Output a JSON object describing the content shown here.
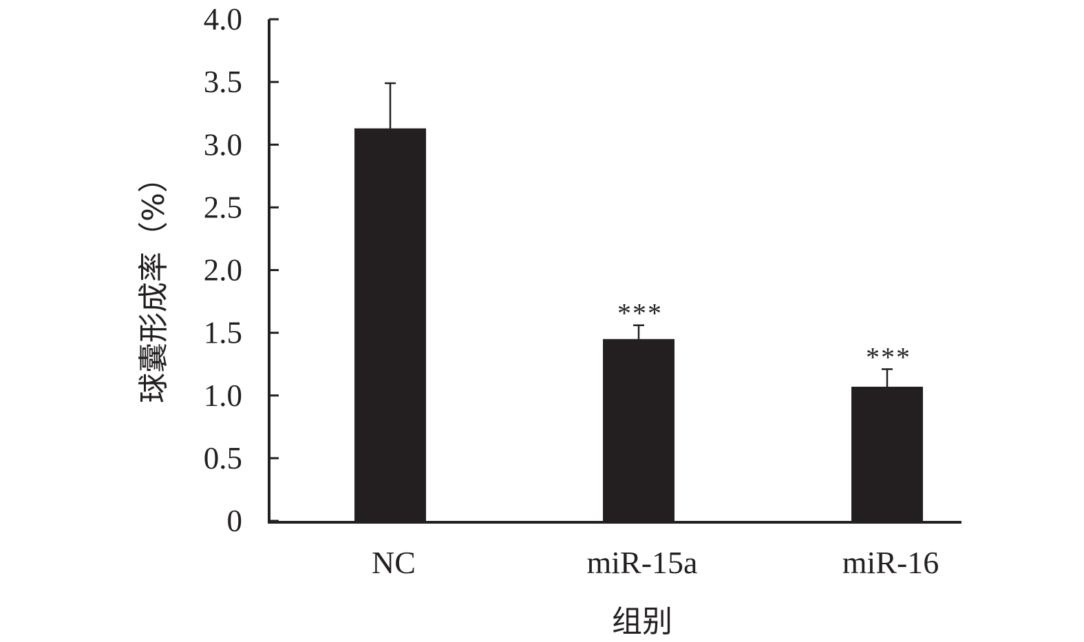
{
  "chart_data": {
    "type": "bar",
    "title": "",
    "xlabel": "组别",
    "ylabel": "球囊形成率（%）",
    "categories": [
      "NC",
      "miR-15a",
      "miR-16"
    ],
    "series": [
      {
        "values": [
          3.13,
          1.45,
          1.07
        ],
        "errors": [
          0.36,
          0.11,
          0.14
        ],
        "significance": [
          "",
          "***",
          "***"
        ]
      }
    ],
    "ylim": [
      0,
      4.0
    ],
    "yticks": [
      0,
      0.5,
      1.0,
      1.5,
      2.0,
      2.5,
      3.0,
      3.5,
      4.0
    ],
    "ytick_labels": [
      "0",
      "0.5",
      "1.0",
      "1.5",
      "2.0",
      "2.5",
      "3.0",
      "3.5",
      "4.0"
    ],
    "grid": false,
    "legend": "none",
    "colors": {
      "bar": "#231f20",
      "axis": "#231f20",
      "text": "#231f20"
    }
  }
}
